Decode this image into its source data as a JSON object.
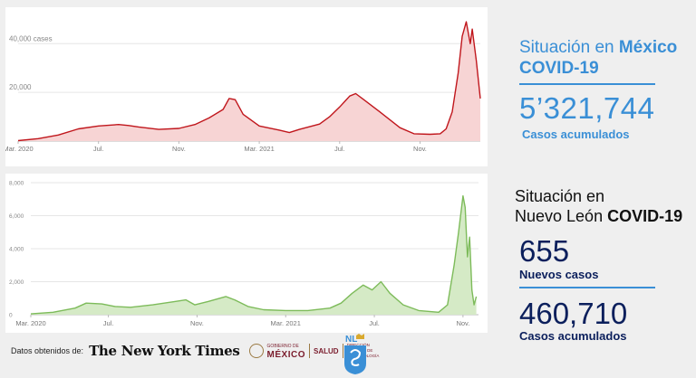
{
  "mexico": {
    "title_line1_prefix": "Situación en ",
    "title_line1_country": "México",
    "title_line2": "COVID-19",
    "total_cases": "5’321,744",
    "total_cases_label": "Casos acumulados",
    "accent_color": "#3a8fd6"
  },
  "nuevo_leon": {
    "title_line1": "Situación en",
    "title_line2_prefix": "Nuevo León ",
    "title_line2_bold": "COVID-19",
    "new_cases": "655",
    "new_cases_label": "Nuevos casos",
    "total_cases": "460,710",
    "total_cases_label": "Casos acumulados",
    "text_color": "#0b1f5c"
  },
  "source": {
    "label": "Datos obtenidos de:",
    "nyt": "The New York Times",
    "gob_small": "GOBIERNO DE",
    "gob_mexico": "MÉXICO",
    "salud": "SALUD",
    "direccion": "DIRECCIÓN GENERAL DE EPIDEMIOLOGÍA",
    "state_logo": "NL"
  },
  "chart_data": [
    {
      "type": "area",
      "series_color": "#c0161c",
      "fill_color": "#f7d4d4",
      "ylim": [
        0,
        52000
      ],
      "yticks": [
        {
          "value": 20000,
          "label": "20,000"
        },
        {
          "value": 40000,
          "label": "40,000 cases"
        }
      ],
      "xticks": [
        "Mar. 2020",
        "Jul.",
        "Nov.",
        "Mar. 2021",
        "Jul.",
        "Nov."
      ],
      "x_range": [
        0,
        23
      ],
      "xtick_positions": [
        0,
        4,
        8,
        12,
        16,
        20
      ],
      "points": [
        [
          0,
          200
        ],
        [
          1,
          1000
        ],
        [
          2,
          2500
        ],
        [
          3,
          5000
        ],
        [
          4,
          6200
        ],
        [
          5,
          6800
        ],
        [
          5.5,
          6400
        ],
        [
          6,
          5800
        ],
        [
          7,
          4800
        ],
        [
          8,
          5200
        ],
        [
          8.8,
          6800
        ],
        [
          9.5,
          9500
        ],
        [
          10.2,
          13000
        ],
        [
          10.5,
          17500
        ],
        [
          10.8,
          17000
        ],
        [
          11.2,
          11000
        ],
        [
          12,
          6200
        ],
        [
          13,
          4500
        ],
        [
          13.5,
          3500
        ],
        [
          14,
          4800
        ],
        [
          15,
          7000
        ],
        [
          15.5,
          10000
        ],
        [
          16,
          14000
        ],
        [
          16.5,
          18500
        ],
        [
          16.8,
          19500
        ],
        [
          17.2,
          17000
        ],
        [
          18,
          12000
        ],
        [
          19,
          5500
        ],
        [
          19.7,
          3000
        ],
        [
          20.5,
          2800
        ],
        [
          21,
          3000
        ],
        [
          21.3,
          5000
        ],
        [
          21.6,
          12000
        ],
        [
          21.9,
          28000
        ],
        [
          22.1,
          43000
        ],
        [
          22.3,
          49000
        ],
        [
          22.5,
          40000
        ],
        [
          22.6,
          46000
        ],
        [
          22.8,
          33000
        ],
        [
          23,
          17500
        ]
      ]
    },
    {
      "type": "area",
      "series_color": "#7dbb5a",
      "fill_color": "#d5eac6",
      "ylim": [
        0,
        8000
      ],
      "yticks": [
        {
          "value": 0,
          "label": "0"
        },
        {
          "value": 2000,
          "label": "2,000"
        },
        {
          "value": 4000,
          "label": "4,000"
        },
        {
          "value": 6000,
          "label": "6,000"
        },
        {
          "value": 8000,
          "label": "8,000"
        }
      ],
      "xticks": [
        "Mar. 2020",
        "Jul.",
        "Nov.",
        "Mar. 2021",
        "Jul.",
        "Nov."
      ],
      "x_range": [
        0,
        20.2
      ],
      "xtick_positions": [
        0,
        3.5,
        7.5,
        11.5,
        15.5,
        19.5
      ],
      "points": [
        [
          0,
          50
        ],
        [
          1,
          150
        ],
        [
          2,
          400
        ],
        [
          2.5,
          700
        ],
        [
          3.2,
          650
        ],
        [
          3.8,
          500
        ],
        [
          4.5,
          450
        ],
        [
          5.5,
          600
        ],
        [
          6.5,
          800
        ],
        [
          7,
          900
        ],
        [
          7.4,
          600
        ],
        [
          8,
          800
        ],
        [
          8.8,
          1100
        ],
        [
          9.2,
          900
        ],
        [
          9.8,
          500
        ],
        [
          10.5,
          300
        ],
        [
          11.5,
          250
        ],
        [
          12.5,
          250
        ],
        [
          13.5,
          400
        ],
        [
          14,
          700
        ],
        [
          14.5,
          1300
        ],
        [
          15,
          1800
        ],
        [
          15.4,
          1500
        ],
        [
          15.8,
          2000
        ],
        [
          16.2,
          1300
        ],
        [
          16.8,
          600
        ],
        [
          17.5,
          250
        ],
        [
          18.4,
          150
        ],
        [
          18.8,
          600
        ],
        [
          19.1,
          3000
        ],
        [
          19.3,
          5000
        ],
        [
          19.5,
          7200
        ],
        [
          19.6,
          6500
        ],
        [
          19.7,
          3500
        ],
        [
          19.8,
          4700
        ],
        [
          19.9,
          1500
        ],
        [
          20.0,
          600
        ],
        [
          20.1,
          1100
        ]
      ]
    }
  ]
}
